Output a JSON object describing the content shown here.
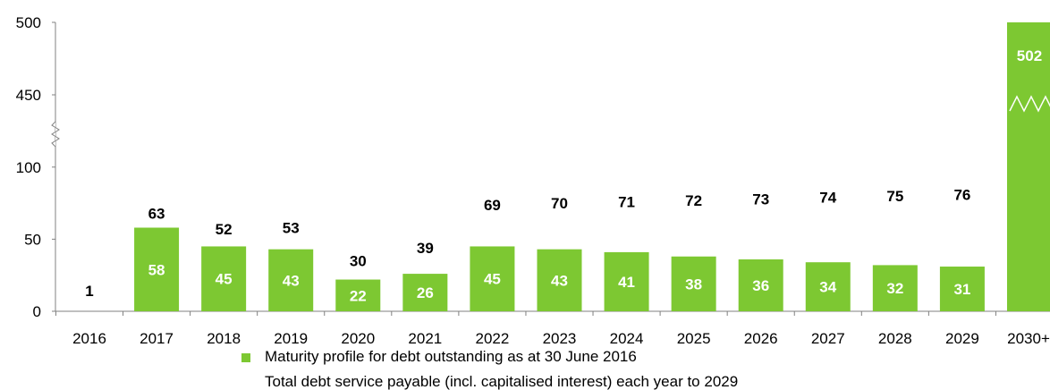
{
  "chart_data": {
    "type": "bar",
    "categories": [
      "2016",
      "2017",
      "2018",
      "2019",
      "2020",
      "2021",
      "2022",
      "2023",
      "2024",
      "2025",
      "2026",
      "2027",
      "2028",
      "2029",
      "2030+"
    ],
    "series": [
      {
        "name": "Maturity profile for debt outstanding as at 30 June 2016",
        "type": "bar",
        "values": [
          0,
          58,
          45,
          43,
          22,
          26,
          45,
          43,
          41,
          38,
          36,
          34,
          32,
          31,
          502
        ],
        "labels": [
          "",
          "58",
          "45",
          "43",
          "22",
          "26",
          "45",
          "43",
          "41",
          "38",
          "36",
          "34",
          "32",
          "31",
          "502"
        ]
      },
      {
        "name": "Total debt service payable (incl. capitalised interest) each year to 2029",
        "type": "label",
        "values": [
          1,
          63,
          52,
          53,
          30,
          39,
          69,
          70,
          71,
          72,
          73,
          74,
          75,
          76,
          null
        ],
        "labels": [
          "1",
          "63",
          "52",
          "53",
          "30",
          "39",
          "69",
          "70",
          "71",
          "72",
          "73",
          "74",
          "75",
          "76",
          ""
        ]
      }
    ],
    "yticks": [
      "0",
      "50",
      "100",
      "450",
      "500"
    ],
    "yaxis_break": [
      100,
      450
    ],
    "ylim": [
      0,
      500
    ],
    "bar_color": "#7dc832",
    "legend_position": "bottom",
    "title": "",
    "xlabel": "",
    "ylabel": ""
  }
}
